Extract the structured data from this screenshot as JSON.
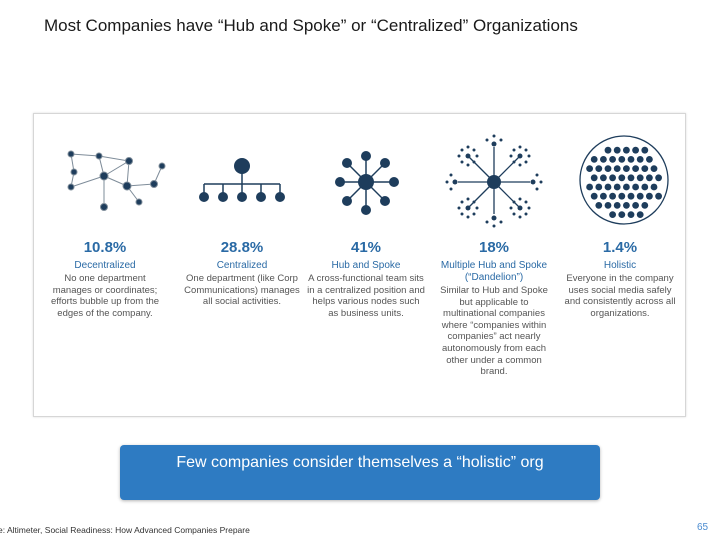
{
  "title": "Most Companies have “Hub and Spoke” or “Centralized” Organizations",
  "columns": [
    {
      "percent": "10.8%",
      "name": "Decentralized",
      "description": "No one department manages or coordinates; efforts bubble up from the edges of the company."
    },
    {
      "percent": "28.8%",
      "name": "Centralized",
      "description": "One department (like Corp Communications) manages all social activities."
    },
    {
      "percent": "41%",
      "name": "Hub and Spoke",
      "description": "A cross-functional team sits in a centralized position and helps various nodes such as business units."
    },
    {
      "percent": "18%",
      "name": "Multiple Hub and Spoke (“Dandelion”)",
      "description": "Similar to Hub and Spoke but applicable to multinational companies where “companies within companies” act nearly autonomously from each other under a common brand."
    },
    {
      "percent": "1.4%",
      "name": "Holistic",
      "description": "Everyone in the company uses social media safely and consistently across all organizations."
    }
  ],
  "callout": "Few companies consider themselves a “holistic” org",
  "source": "e: Altimeter, Social Readiness: How Advanced Companies Prepare",
  "page_number": "65",
  "colors": {
    "node": "#1e3d5c",
    "accent_text": "#2a6aa5",
    "callout_bg": "#2e7bc2"
  }
}
